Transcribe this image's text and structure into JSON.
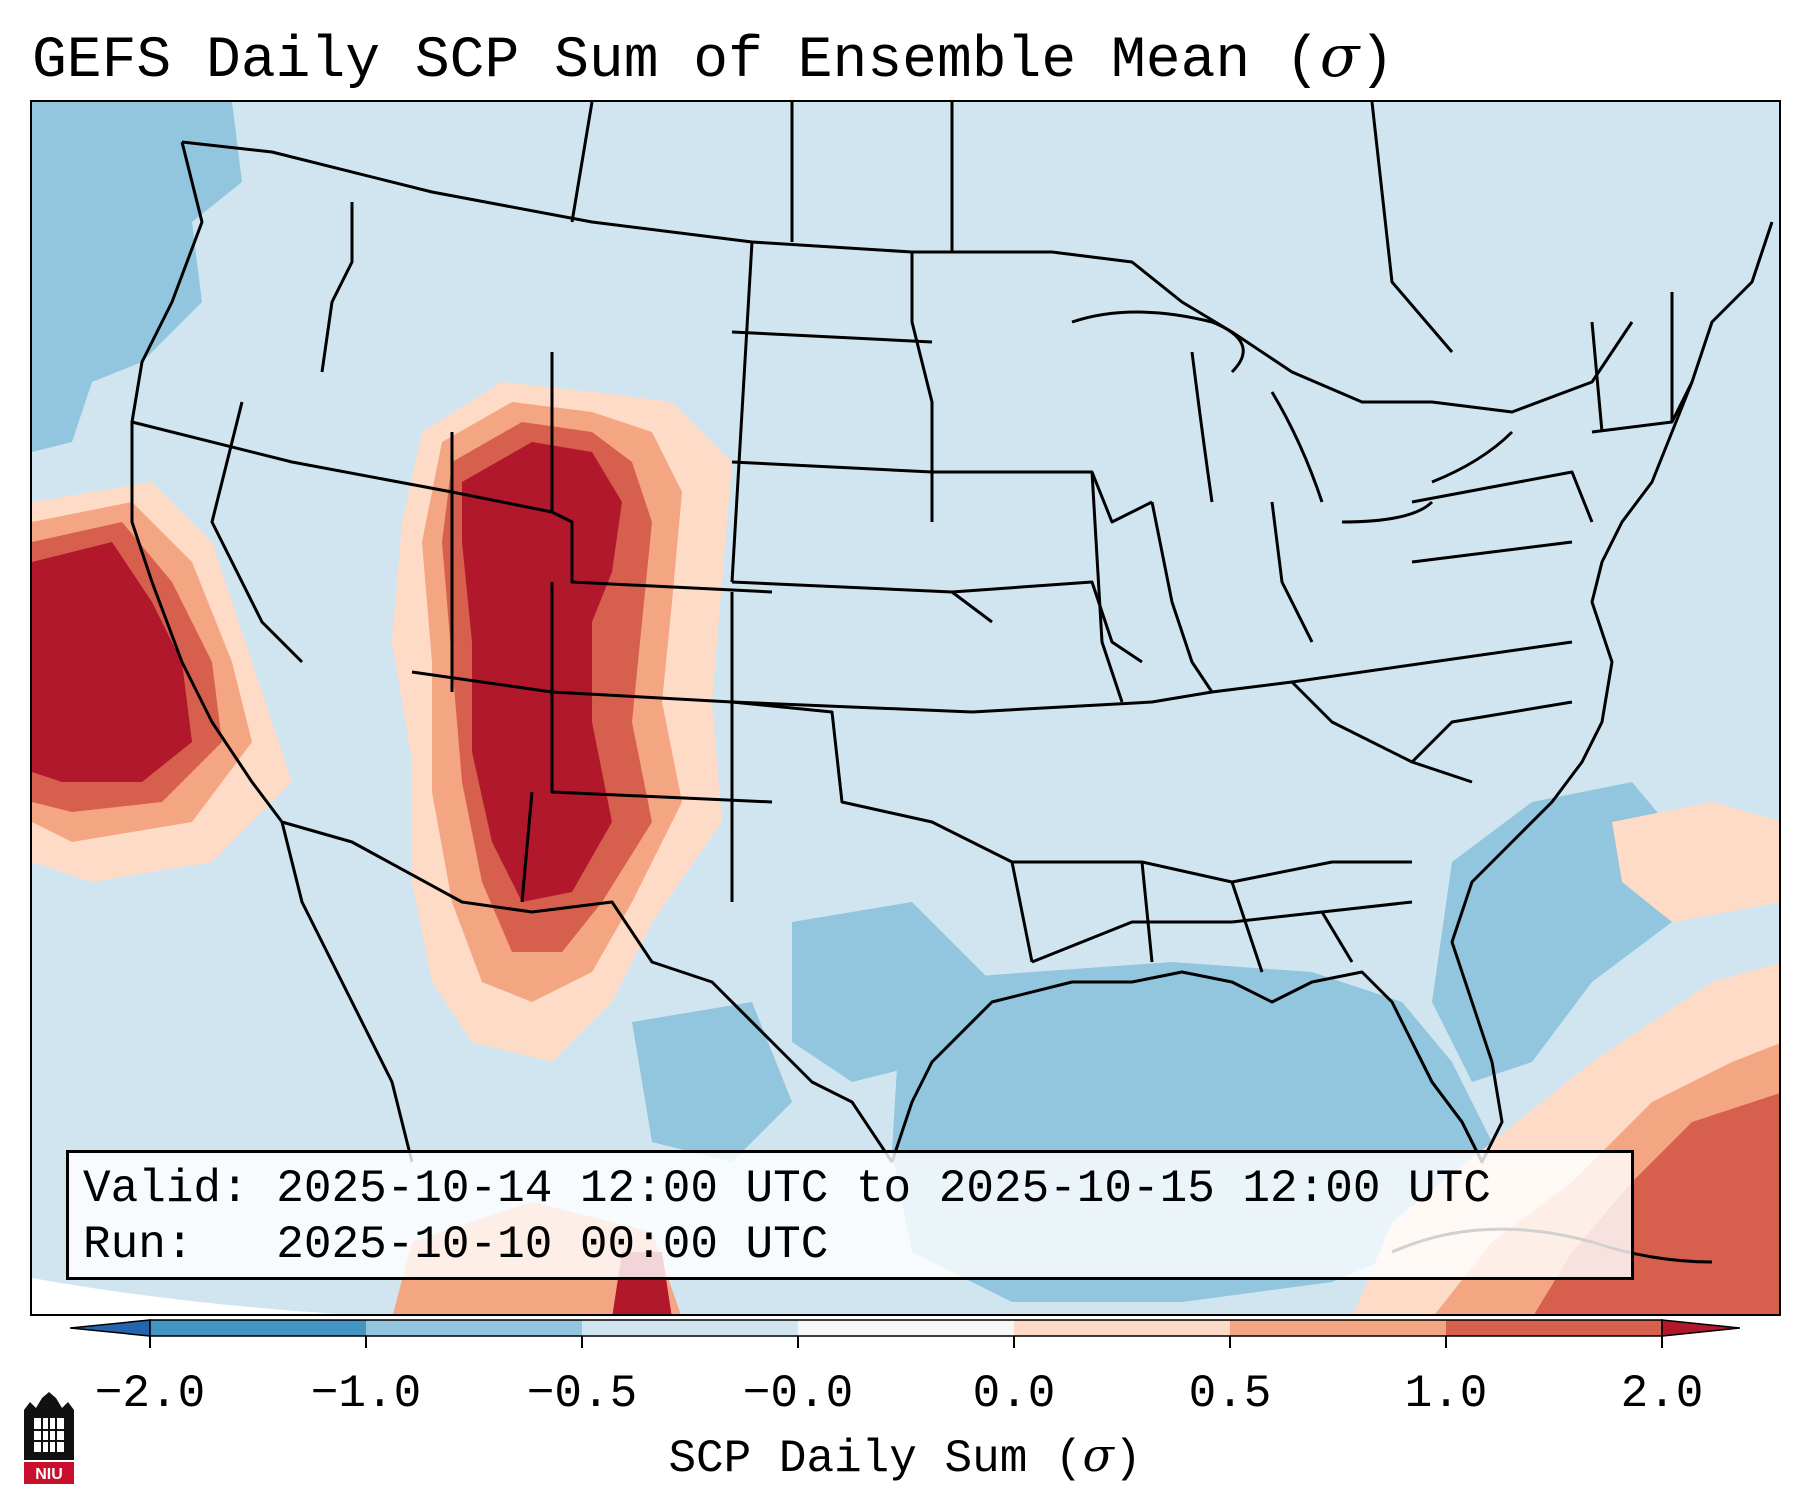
{
  "title": {
    "text": "GEFS Daily SCP Sum of Ensemble Mean (",
    "symbol": "σ",
    "close": ")"
  },
  "info": {
    "valid_label": "Valid:",
    "valid_value": "2025-10-14 12:00 UTC to 2025-10-15 12:00 UTC",
    "run_label": "Run:",
    "run_value": "2025-10-10 00:00 UTC"
  },
  "colorbar": {
    "label_text": "SCP Daily Sum (",
    "label_symbol": "σ",
    "label_close": ")",
    "ticks": [
      "−2.0",
      "−1.0",
      "−0.5",
      "−0.0",
      "0.0",
      "0.5",
      "1.0",
      "2.0"
    ],
    "colors": [
      "#4393c3",
      "#92c5de",
      "#d1e5f0",
      "#f7f7f7",
      "#fddbc7",
      "#f4a582",
      "#d6604d",
      "#b2182b"
    ],
    "extend_low_color": "#2166ac",
    "extend_high_color": "#b2182b"
  },
  "map": {
    "region": "Contiguous United States",
    "ocean_color": "#d1e5f0"
  },
  "logo": {
    "text": "NIU",
    "color": "#c8102e"
  }
}
